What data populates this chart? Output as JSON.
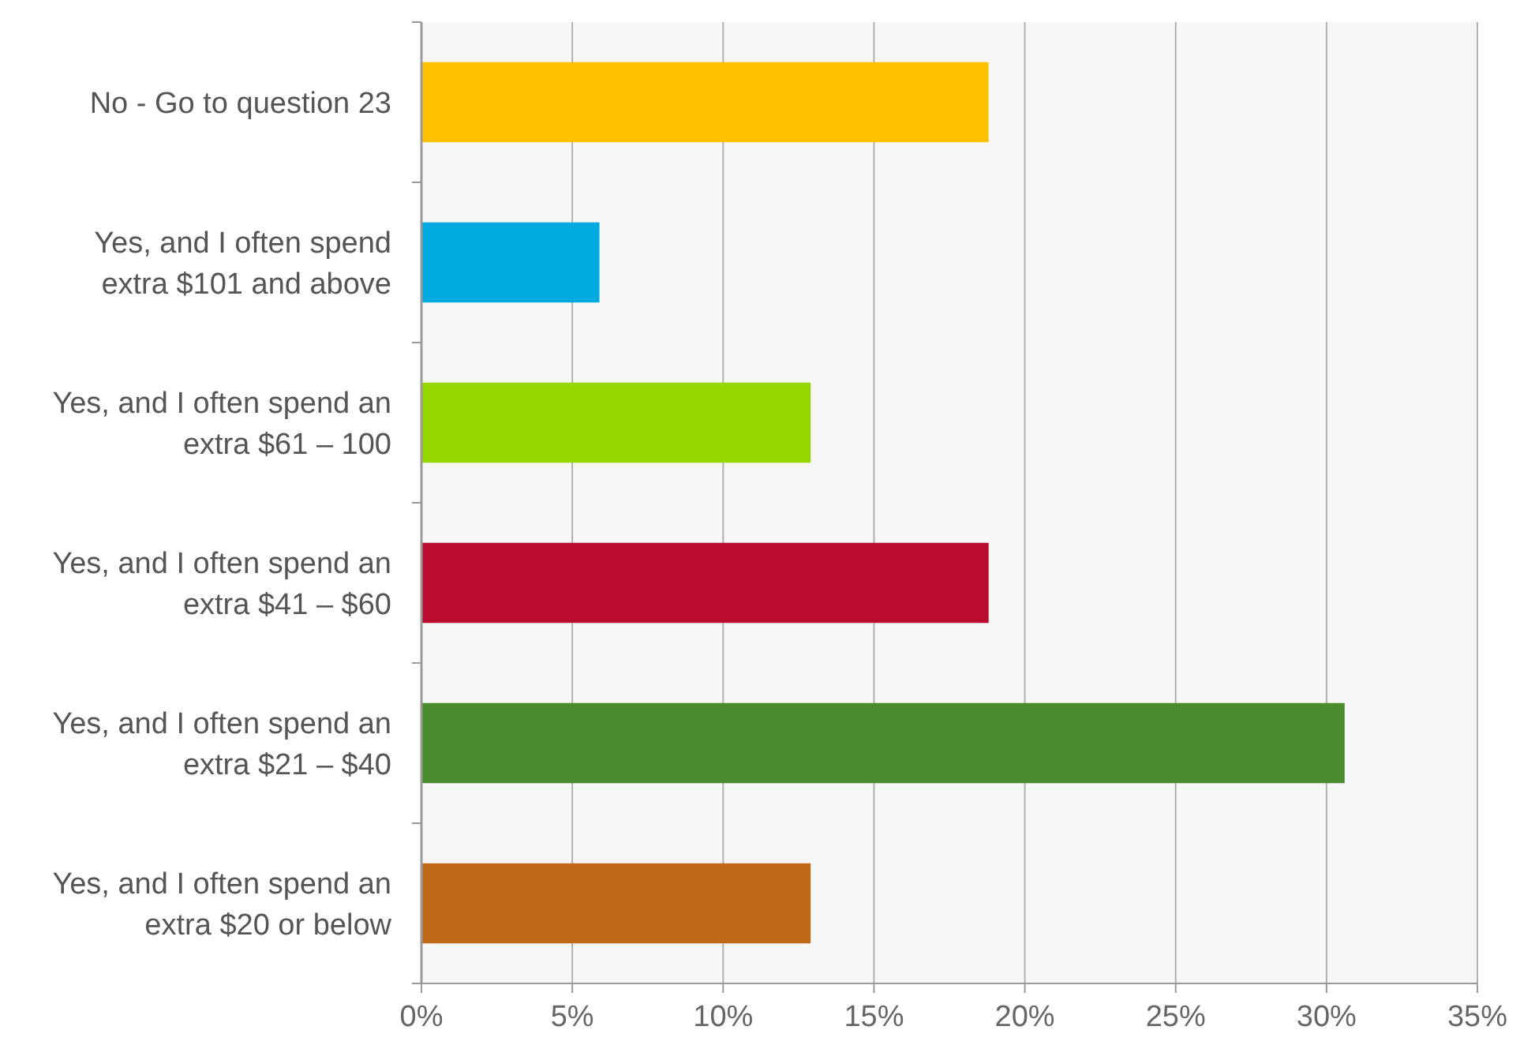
{
  "chart_data": {
    "type": "bar",
    "orientation": "horizontal",
    "categories": [
      "No - Go to question 23",
      "Yes, and I often spend extra $101 and above",
      "Yes, and I often spend an extra $61 – 100",
      "Yes, and I often spend an extra $41 – $60",
      "Yes, and I often spend an extra $21 – $40",
      "Yes, and I often spend an extra $20 or below"
    ],
    "values": [
      18.8,
      5.9,
      12.9,
      18.8,
      30.6,
      12.9
    ],
    "colors": [
      "#ffc000",
      "#00a9e0",
      "#97d700",
      "#ba0c2f",
      "#4a8c2e",
      "#c0691a"
    ],
    "xlim": [
      0,
      35
    ],
    "xticks": [
      {
        "value": 0,
        "label": "0%"
      },
      {
        "value": 5,
        "label": "5%"
      },
      {
        "value": 10,
        "label": "10%"
      },
      {
        "value": 15,
        "label": "15%"
      },
      {
        "value": 20,
        "label": "20%"
      },
      {
        "value": 25,
        "label": "25%"
      },
      {
        "value": 30,
        "label": "30%"
      },
      {
        "value": 35,
        "label": "35%"
      }
    ],
    "grid": "x"
  }
}
